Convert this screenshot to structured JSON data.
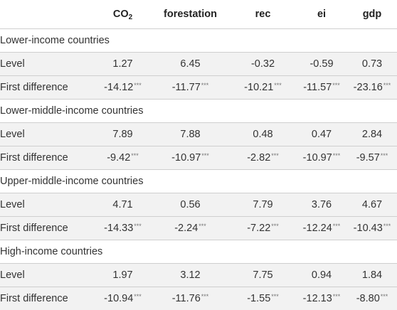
{
  "header": {
    "blank": "",
    "co2_base": "CO",
    "co2_sub": "2",
    "forestation": "forestation",
    "rec": "rec",
    "ei": "ei",
    "gdp": "gdp"
  },
  "groups": [
    {
      "title": "Lower-income countries",
      "level": {
        "label": "Level",
        "values": [
          "1.27",
          "6.45",
          "-0.32",
          "-0.59",
          "0.73"
        ]
      },
      "diff": {
        "label": "First difference",
        "values": [
          "-14.12",
          "-11.77",
          "-10.21",
          "-11.57",
          "-23.16"
        ],
        "sig": [
          "***",
          "***",
          "***",
          "***",
          "***"
        ]
      }
    },
    {
      "title": "Lower-middle-income countries",
      "level": {
        "label": "Level",
        "values": [
          "7.89",
          "7.88",
          "0.48",
          "0.47",
          "2.84"
        ]
      },
      "diff": {
        "label": "First difference",
        "values": [
          "-9.42",
          "-10.97",
          "-2.82",
          "-10.97",
          "-9.57"
        ],
        "sig": [
          "***",
          "***",
          "***",
          "***",
          "***"
        ]
      }
    },
    {
      "title": "Upper-middle-income countries",
      "level": {
        "label": "Level",
        "values": [
          "4.71",
          "0.56",
          "7.79",
          "3.76",
          "4.67"
        ]
      },
      "diff": {
        "label": "First difference",
        "values": [
          "-14.33",
          "-2.24",
          "-7.22",
          "-12.24",
          "-10.43"
        ],
        "sig": [
          "***",
          "***",
          "***",
          "***",
          "***"
        ]
      }
    },
    {
      "title": "High-income countries",
      "level": {
        "label": "Level",
        "values": [
          "1.97",
          "3.12",
          "7.75",
          "0.94",
          "1.84"
        ]
      },
      "diff": {
        "label": "First difference",
        "values": [
          "-10.94",
          "-11.76",
          "-1.55",
          "-12.13",
          "-8.80"
        ],
        "sig": [
          "***",
          "***",
          "***",
          "***",
          "***"
        ]
      }
    }
  ]
}
